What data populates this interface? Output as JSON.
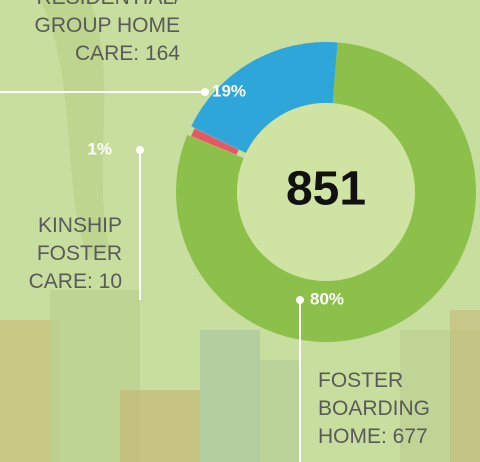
{
  "chart_data": {
    "type": "donut",
    "categories": [
      [
        "RESIDENTIAL/",
        "GROUP HOME",
        "CARE: 164"
      ],
      [
        "FOSTER",
        "BOARDING",
        "HOME: 677"
      ],
      [
        "KINSHIP",
        "FOSTER",
        "CARE: 10"
      ]
    ],
    "values": [
      19,
      80,
      1
    ],
    "value_labels": [
      "19%",
      "80%",
      "1%"
    ],
    "colors": [
      "#2ea6da",
      "#8cc04a",
      "#e25a63"
    ],
    "total": "851"
  }
}
